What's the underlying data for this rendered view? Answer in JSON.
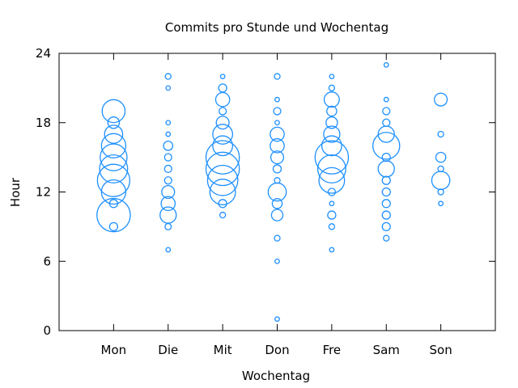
{
  "chart_data": {
    "type": "scatter",
    "title": "Commits pro Stunde und Wochentag",
    "xlabel": "Wochentag",
    "ylabel": "Hour",
    "categories": [
      "Mon",
      "Die",
      "Mit",
      "Don",
      "Fre",
      "Sam",
      "Son"
    ],
    "ylim": [
      0,
      24
    ],
    "yticks": [
      0,
      6,
      12,
      18,
      24
    ],
    "grid": false,
    "legend": "none",
    "marker_color": "#1E90FF",
    "points": [
      {
        "day": "Mon",
        "hour": 9,
        "size": 1
      },
      {
        "day": "Mon",
        "hour": 10,
        "size": 17
      },
      {
        "day": "Mon",
        "hour": 11,
        "size": 1
      },
      {
        "day": "Mon",
        "hour": 12,
        "size": 9
      },
      {
        "day": "Mon",
        "hour": 13,
        "size": 16
      },
      {
        "day": "Mon",
        "hour": 14,
        "size": 12
      },
      {
        "day": "Mon",
        "hour": 15,
        "size": 11
      },
      {
        "day": "Mon",
        "hour": 16,
        "size": 9
      },
      {
        "day": "Mon",
        "hour": 17,
        "size": 5
      },
      {
        "day": "Mon",
        "hour": 18,
        "size": 2
      },
      {
        "day": "Mon",
        "hour": 19,
        "size": 8
      },
      {
        "day": "Die",
        "hour": 7,
        "size": 0.3
      },
      {
        "day": "Die",
        "hour": 9,
        "size": 0.6
      },
      {
        "day": "Die",
        "hour": 10,
        "size": 4
      },
      {
        "day": "Die",
        "hour": 11,
        "size": 3
      },
      {
        "day": "Die",
        "hour": 12,
        "size": 2.5
      },
      {
        "day": "Die",
        "hour": 13,
        "size": 0.8
      },
      {
        "day": "Die",
        "hour": 14,
        "size": 0.8
      },
      {
        "day": "Die",
        "hour": 15,
        "size": 0.8
      },
      {
        "day": "Die",
        "hour": 16,
        "size": 1.3
      },
      {
        "day": "Die",
        "hour": 17,
        "size": 0.3
      },
      {
        "day": "Die",
        "hour": 18,
        "size": 0.3
      },
      {
        "day": "Die",
        "hour": 21,
        "size": 0.3
      },
      {
        "day": "Die",
        "hour": 22,
        "size": 0.5
      },
      {
        "day": "Mit",
        "hour": 10,
        "size": 0.5
      },
      {
        "day": "Mit",
        "hour": 11,
        "size": 1
      },
      {
        "day": "Mit",
        "hour": 12,
        "size": 10
      },
      {
        "day": "Mit",
        "hour": 13,
        "size": 14
      },
      {
        "day": "Mit",
        "hour": 14,
        "size": 17
      },
      {
        "day": "Mit",
        "hour": 15,
        "size": 17
      },
      {
        "day": "Mit",
        "hour": 16,
        "size": 6
      },
      {
        "day": "Mit",
        "hour": 17,
        "size": 6
      },
      {
        "day": "Mit",
        "hour": 18,
        "size": 2.5
      },
      {
        "day": "Mit",
        "hour": 19,
        "size": 0.8
      },
      {
        "day": "Mit",
        "hour": 20,
        "size": 3
      },
      {
        "day": "Mit",
        "hour": 21,
        "size": 1
      },
      {
        "day": "Mit",
        "hour": 22,
        "size": 0.3
      },
      {
        "day": "Don",
        "hour": 1,
        "size": 0.3
      },
      {
        "day": "Don",
        "hour": 6,
        "size": 0.3
      },
      {
        "day": "Don",
        "hour": 8,
        "size": 0.5
      },
      {
        "day": "Don",
        "hour": 10,
        "size": 2
      },
      {
        "day": "Don",
        "hour": 11,
        "size": 1.5
      },
      {
        "day": "Don",
        "hour": 12,
        "size": 5
      },
      {
        "day": "Don",
        "hour": 13,
        "size": 0.5
      },
      {
        "day": "Don",
        "hour": 14,
        "size": 1
      },
      {
        "day": "Don",
        "hour": 15,
        "size": 2.5
      },
      {
        "day": "Don",
        "hour": 16,
        "size": 3
      },
      {
        "day": "Don",
        "hour": 17,
        "size": 3
      },
      {
        "day": "Don",
        "hour": 18,
        "size": 0.3
      },
      {
        "day": "Don",
        "hour": 19,
        "size": 0.8
      },
      {
        "day": "Don",
        "hour": 20,
        "size": 0.3
      },
      {
        "day": "Don",
        "hour": 22,
        "size": 0.5
      },
      {
        "day": "Fre",
        "hour": 7,
        "size": 0.3
      },
      {
        "day": "Fre",
        "hour": 9,
        "size": 0.5
      },
      {
        "day": "Fre",
        "hour": 10,
        "size": 1
      },
      {
        "day": "Fre",
        "hour": 11,
        "size": 0.3
      },
      {
        "day": "Fre",
        "hour": 12,
        "size": 0.8
      },
      {
        "day": "Fre",
        "hour": 13,
        "size": 10
      },
      {
        "day": "Fre",
        "hour": 14,
        "size": 12
      },
      {
        "day": "Fre",
        "hour": 15,
        "size": 17
      },
      {
        "day": "Fre",
        "hour": 16,
        "size": 6
      },
      {
        "day": "Fre",
        "hour": 17,
        "size": 4
      },
      {
        "day": "Fre",
        "hour": 18,
        "size": 2
      },
      {
        "day": "Fre",
        "hour": 19,
        "size": 1.5
      },
      {
        "day": "Fre",
        "hour": 20,
        "size": 3.5
      },
      {
        "day": "Fre",
        "hour": 21,
        "size": 0.5
      },
      {
        "day": "Fre",
        "hour": 22,
        "size": 0.3
      },
      {
        "day": "Sam",
        "hour": 8,
        "size": 0.5
      },
      {
        "day": "Sam",
        "hour": 9,
        "size": 1
      },
      {
        "day": "Sam",
        "hour": 10,
        "size": 1
      },
      {
        "day": "Sam",
        "hour": 11,
        "size": 1
      },
      {
        "day": "Sam",
        "hour": 12,
        "size": 1
      },
      {
        "day": "Sam",
        "hour": 13,
        "size": 1
      },
      {
        "day": "Sam",
        "hour": 14,
        "size": 4
      },
      {
        "day": "Sam",
        "hour": 15,
        "size": 1
      },
      {
        "day": "Sam",
        "hour": 16,
        "size": 11
      },
      {
        "day": "Sam",
        "hour": 17,
        "size": 4
      },
      {
        "day": "Sam",
        "hour": 18,
        "size": 0.8
      },
      {
        "day": "Sam",
        "hour": 19,
        "size": 0.8
      },
      {
        "day": "Sam",
        "hour": 20,
        "size": 0.3
      },
      {
        "day": "Sam",
        "hour": 23,
        "size": 0.3
      },
      {
        "day": "Son",
        "hour": 11,
        "size": 0.3
      },
      {
        "day": "Son",
        "hour": 12,
        "size": 0.5
      },
      {
        "day": "Son",
        "hour": 13,
        "size": 5
      },
      {
        "day": "Son",
        "hour": 14,
        "size": 0.5
      },
      {
        "day": "Son",
        "hour": 15,
        "size": 1.5
      },
      {
        "day": "Son",
        "hour": 17,
        "size": 0.5
      },
      {
        "day": "Son",
        "hour": 20,
        "size": 2.5
      }
    ]
  }
}
